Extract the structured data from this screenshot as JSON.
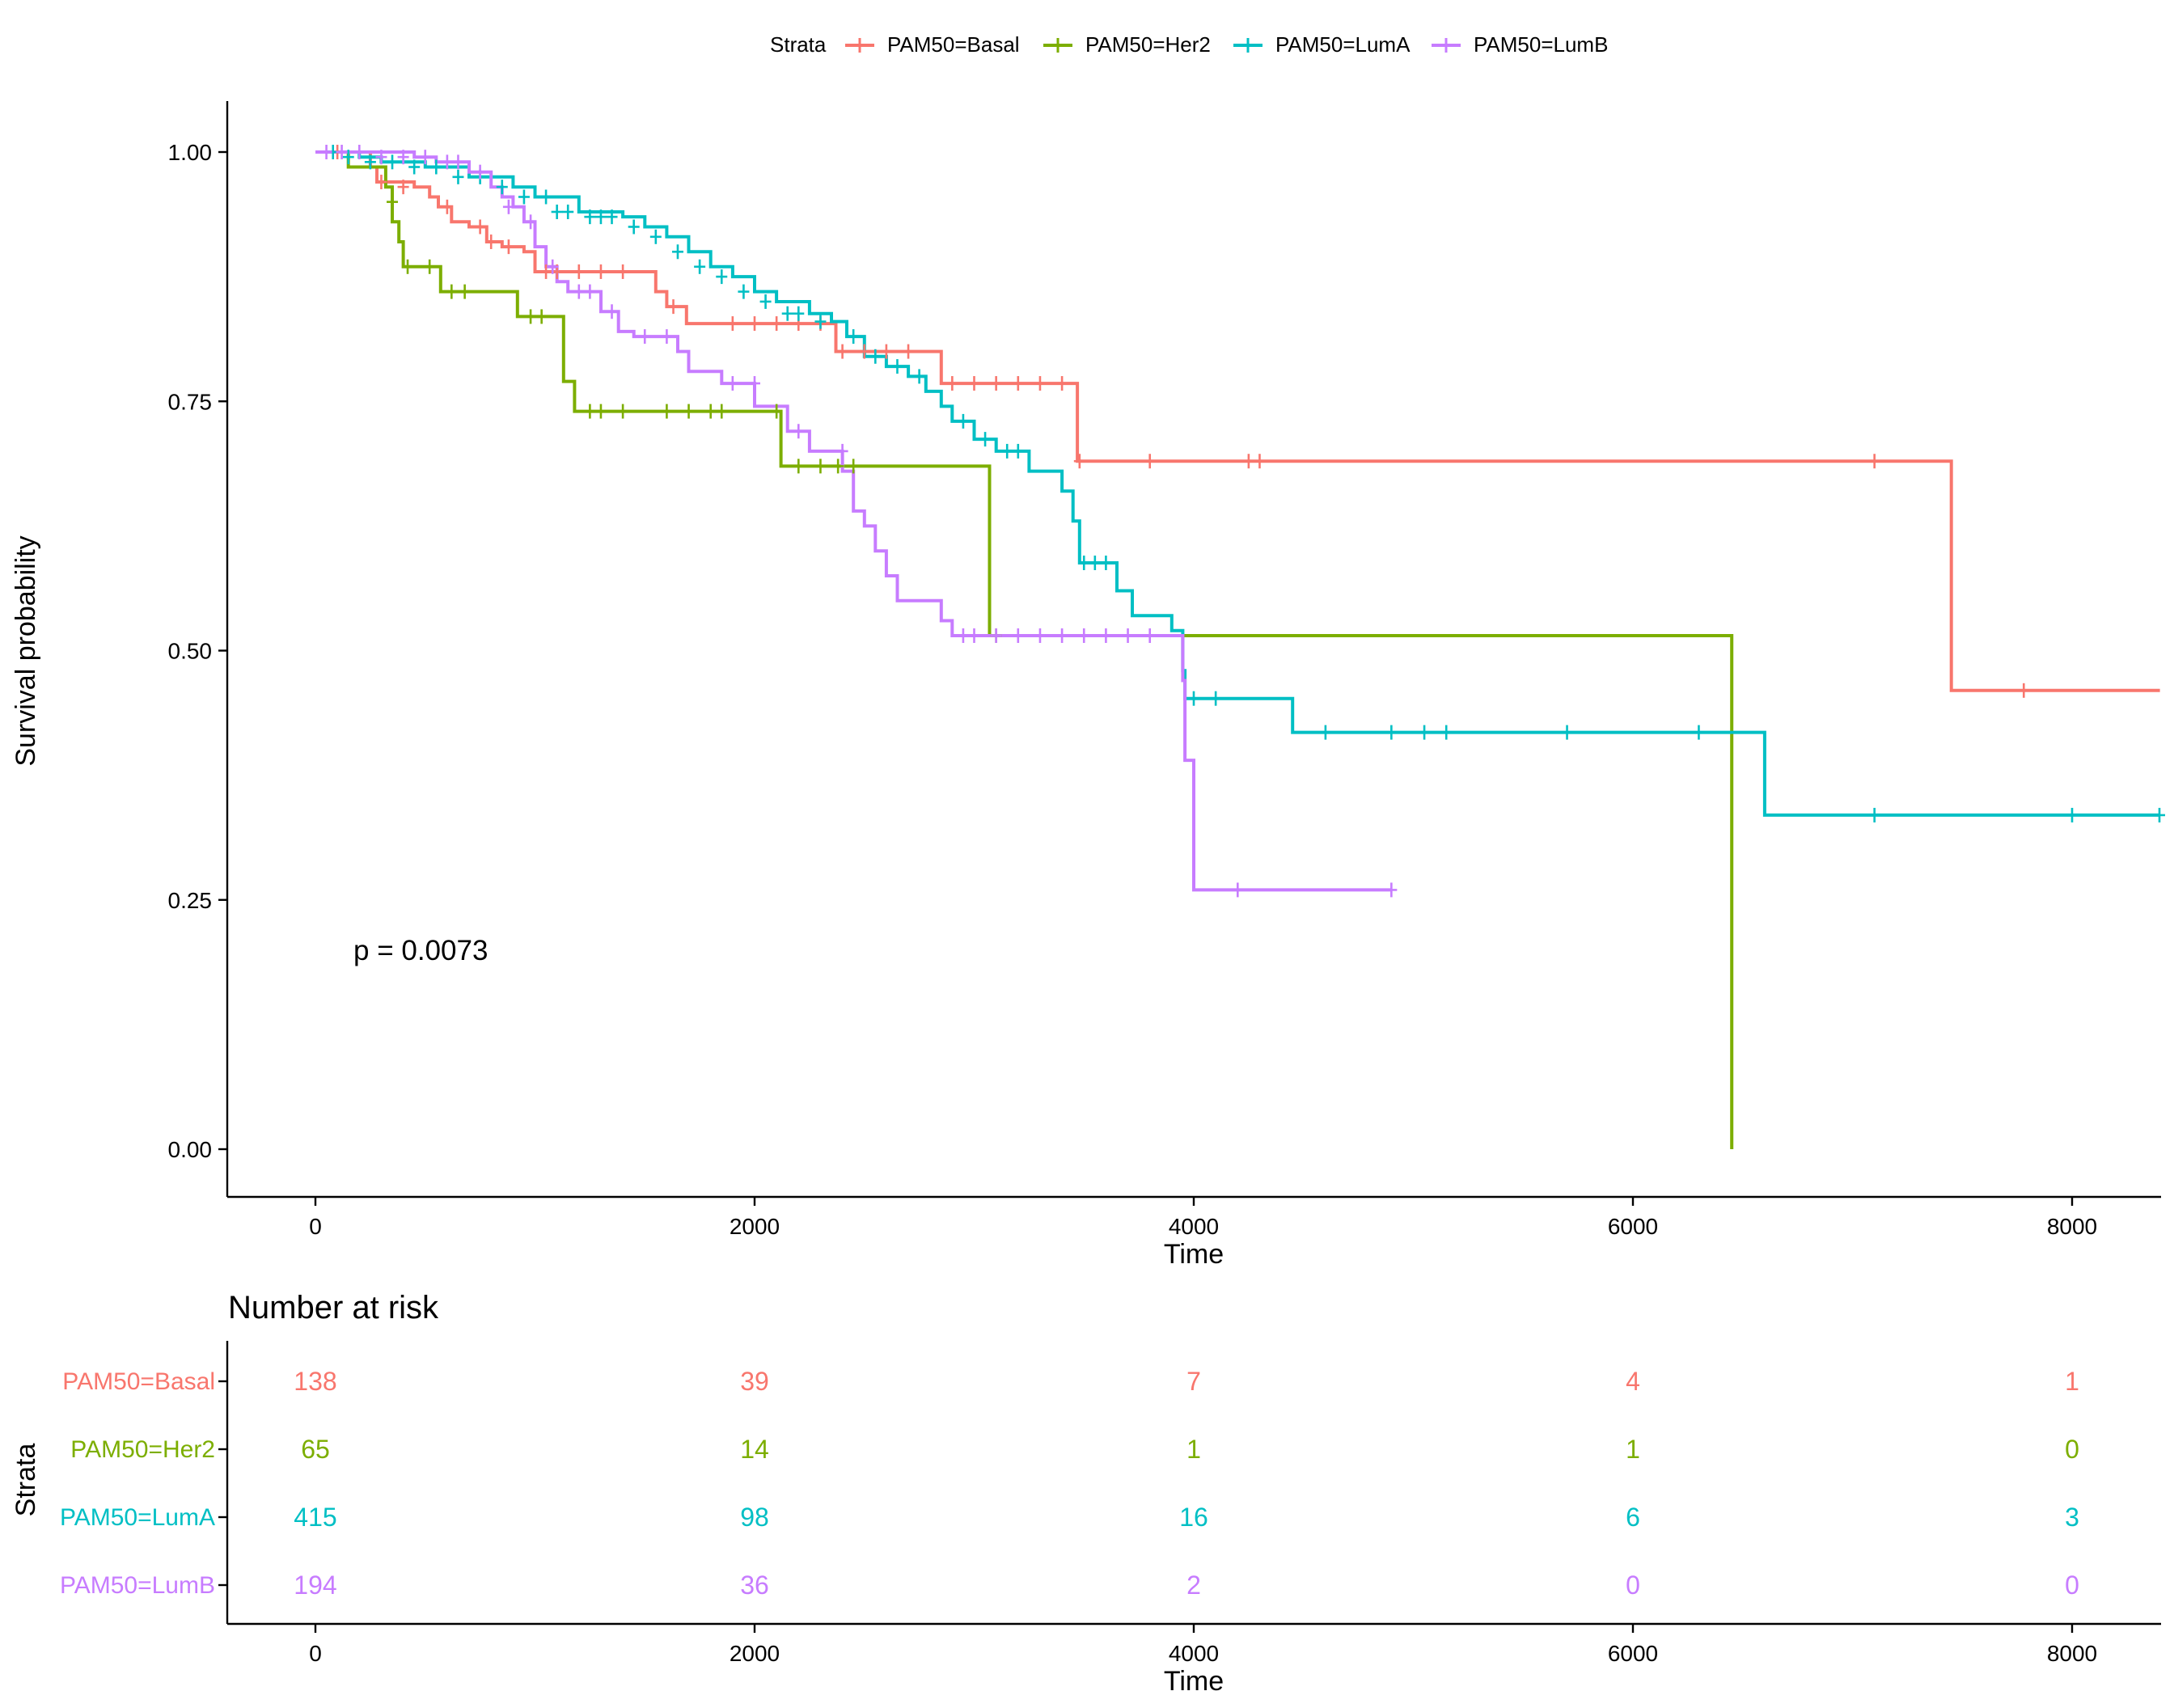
{
  "legend": {
    "title": "Strata",
    "items": [
      {
        "label": "PAM50=Basal",
        "color": "#F8766D"
      },
      {
        "label": "PAM50=Her2",
        "color": "#7CAE00"
      },
      {
        "label": "PAM50=LumA",
        "color": "#00BFC4"
      },
      {
        "label": "PAM50=LumB",
        "color": "#C77CFF"
      }
    ],
    "position": "top"
  },
  "chart_data": [
    {
      "type": "line",
      "subtype": "kaplan-meier step curve",
      "xlabel": "Time",
      "ylabel": "Survival probability",
      "xlim": [
        -400,
        8400
      ],
      "ylim": [
        -0.05,
        1.05
      ],
      "x_ticks": [
        "0",
        "2000",
        "4000",
        "6000",
        "8000"
      ],
      "y_ticks": [
        "0.00",
        "0.25",
        "0.50",
        "0.75",
        "1.00"
      ],
      "grid": false,
      "annotation": "p = 0.0073",
      "series": [
        {
          "name": "PAM50=Basal",
          "color": "#F8766D",
          "steps": [
            [
              0,
              1.0
            ],
            [
              250,
              0.985
            ],
            [
              280,
              0.97
            ],
            [
              450,
              0.965
            ],
            [
              520,
              0.955
            ],
            [
              560,
              0.945
            ],
            [
              620,
              0.93
            ],
            [
              700,
              0.925
            ],
            [
              780,
              0.91
            ],
            [
              850,
              0.905
            ],
            [
              950,
              0.9
            ],
            [
              1000,
              0.88
            ],
            [
              1550,
              0.86
            ],
            [
              1600,
              0.845
            ],
            [
              1690,
              0.828
            ],
            [
              2370,
              0.8
            ],
            [
              2850,
              0.768
            ],
            [
              3470,
              0.69
            ],
            [
              7450,
              0.46
            ],
            [
              8400,
              0.46
            ]
          ],
          "censored": [
            [
              100,
              1.0
            ],
            [
              300,
              0.97
            ],
            [
              400,
              0.965
            ],
            [
              600,
              0.945
            ],
            [
              750,
              0.925
            ],
            [
              800,
              0.91
            ],
            [
              880,
              0.905
            ],
            [
              1050,
              0.88
            ],
            [
              1100,
              0.88
            ],
            [
              1200,
              0.88
            ],
            [
              1300,
              0.88
            ],
            [
              1400,
              0.88
            ],
            [
              1630,
              0.845
            ],
            [
              1900,
              0.828
            ],
            [
              2000,
              0.828
            ],
            [
              2100,
              0.828
            ],
            [
              2200,
              0.828
            ],
            [
              2300,
              0.828
            ],
            [
              2400,
              0.8
            ],
            [
              2500,
              0.8
            ],
            [
              2600,
              0.8
            ],
            [
              2700,
              0.8
            ],
            [
              2900,
              0.768
            ],
            [
              3000,
              0.768
            ],
            [
              3100,
              0.768
            ],
            [
              3200,
              0.768
            ],
            [
              3300,
              0.768
            ],
            [
              3400,
              0.768
            ],
            [
              3480,
              0.69
            ],
            [
              3800,
              0.69
            ],
            [
              4250,
              0.69
            ],
            [
              4300,
              0.69
            ],
            [
              7100,
              0.69
            ],
            [
              7780,
              0.46
            ]
          ]
        },
        {
          "name": "PAM50=Her2",
          "color": "#7CAE00",
          "steps": [
            [
              0,
              1.0
            ],
            [
              150,
              0.985
            ],
            [
              320,
              0.965
            ],
            [
              350,
              0.93
            ],
            [
              380,
              0.91
            ],
            [
              400,
              0.885
            ],
            [
              570,
              0.86
            ],
            [
              920,
              0.835
            ],
            [
              1130,
              0.77
            ],
            [
              1180,
              0.74
            ],
            [
              2120,
              0.685
            ],
            [
              3070,
              0.515
            ],
            [
              6450,
              0.0
            ]
          ],
          "censored": [
            [
              350,
              0.95
            ],
            [
              420,
              0.885
            ],
            [
              520,
              0.885
            ],
            [
              620,
              0.86
            ],
            [
              680,
              0.86
            ],
            [
              980,
              0.835
            ],
            [
              1030,
              0.835
            ],
            [
              1250,
              0.74
            ],
            [
              1300,
              0.74
            ],
            [
              1400,
              0.74
            ],
            [
              1600,
              0.74
            ],
            [
              1700,
              0.74
            ],
            [
              1800,
              0.74
            ],
            [
              1850,
              0.74
            ],
            [
              2100,
              0.74
            ],
            [
              2200,
              0.685
            ],
            [
              2300,
              0.685
            ],
            [
              2380,
              0.685
            ],
            [
              2450,
              0.685
            ],
            [
              3100,
              0.515
            ]
          ]
        },
        {
          "name": "PAM50=LumA",
          "color": "#00BFC4",
          "steps": [
            [
              0,
              1.0
            ],
            [
              200,
              0.995
            ],
            [
              300,
              0.99
            ],
            [
              500,
              0.985
            ],
            [
              700,
              0.975
            ],
            [
              900,
              0.965
            ],
            [
              1000,
              0.955
            ],
            [
              1200,
              0.94
            ],
            [
              1400,
              0.935
            ],
            [
              1500,
              0.925
            ],
            [
              1600,
              0.915
            ],
            [
              1700,
              0.9
            ],
            [
              1800,
              0.885
            ],
            [
              1900,
              0.875
            ],
            [
              2000,
              0.86
            ],
            [
              2100,
              0.85
            ],
            [
              2250,
              0.838
            ],
            [
              2350,
              0.83
            ],
            [
              2420,
              0.815
            ],
            [
              2500,
              0.795
            ],
            [
              2600,
              0.785
            ],
            [
              2700,
              0.775
            ],
            [
              2780,
              0.76
            ],
            [
              2850,
              0.745
            ],
            [
              2900,
              0.73
            ],
            [
              3000,
              0.712
            ],
            [
              3100,
              0.7
            ],
            [
              3250,
              0.68
            ],
            [
              3400,
              0.66
            ],
            [
              3450,
              0.63
            ],
            [
              3480,
              0.588
            ],
            [
              3650,
              0.56
            ],
            [
              3720,
              0.535
            ],
            [
              3900,
              0.52
            ],
            [
              3950,
              0.48
            ],
            [
              3960,
              0.452
            ],
            [
              4450,
              0.418
            ],
            [
              6600,
              0.335
            ],
            [
              8400,
              0.335
            ]
          ],
          "censored": [
            [
              80,
              1.0
            ],
            [
              150,
              0.995
            ],
            [
              250,
              0.99
            ],
            [
              350,
              0.99
            ],
            [
              450,
              0.985
            ],
            [
              550,
              0.985
            ],
            [
              650,
              0.975
            ],
            [
              750,
              0.975
            ],
            [
              850,
              0.965
            ],
            [
              950,
              0.955
            ],
            [
              1050,
              0.955
            ],
            [
              1100,
              0.94
            ],
            [
              1150,
              0.94
            ],
            [
              1250,
              0.935
            ],
            [
              1300,
              0.935
            ],
            [
              1350,
              0.935
            ],
            [
              1450,
              0.925
            ],
            [
              1550,
              0.915
            ],
            [
              1650,
              0.9
            ],
            [
              1750,
              0.885
            ],
            [
              1850,
              0.875
            ],
            [
              1950,
              0.86
            ],
            [
              2050,
              0.85
            ],
            [
              2150,
              0.838
            ],
            [
              2200,
              0.838
            ],
            [
              2300,
              0.83
            ],
            [
              2450,
              0.815
            ],
            [
              2550,
              0.795
            ],
            [
              2650,
              0.785
            ],
            [
              2750,
              0.775
            ],
            [
              2950,
              0.73
            ],
            [
              3050,
              0.712
            ],
            [
              3150,
              0.7
            ],
            [
              3200,
              0.7
            ],
            [
              3500,
              0.588
            ],
            [
              3550,
              0.588
            ],
            [
              3600,
              0.588
            ],
            [
              4000,
              0.452
            ],
            [
              4100,
              0.452
            ],
            [
              4600,
              0.418
            ],
            [
              4900,
              0.418
            ],
            [
              5050,
              0.418
            ],
            [
              5150,
              0.418
            ],
            [
              5700,
              0.418
            ],
            [
              6300,
              0.418
            ],
            [
              7100,
              0.335
            ],
            [
              8000,
              0.335
            ],
            [
              8400,
              0.335
            ]
          ]
        },
        {
          "name": "PAM50=LumB",
          "color": "#C77CFF",
          "steps": [
            [
              0,
              1.0
            ],
            [
              450,
              0.995
            ],
            [
              550,
              0.99
            ],
            [
              700,
              0.98
            ],
            [
              800,
              0.965
            ],
            [
              850,
              0.955
            ],
            [
              900,
              0.945
            ],
            [
              950,
              0.93
            ],
            [
              1000,
              0.905
            ],
            [
              1050,
              0.885
            ],
            [
              1100,
              0.87
            ],
            [
              1150,
              0.86
            ],
            [
              1300,
              0.84
            ],
            [
              1380,
              0.82
            ],
            [
              1450,
              0.815
            ],
            [
              1650,
              0.8
            ],
            [
              1700,
              0.78
            ],
            [
              1850,
              0.768
            ],
            [
              2000,
              0.745
            ],
            [
              2150,
              0.72
            ],
            [
              2250,
              0.7
            ],
            [
              2400,
              0.68
            ],
            [
              2450,
              0.64
            ],
            [
              2500,
              0.625
            ],
            [
              2550,
              0.6
            ],
            [
              2600,
              0.575
            ],
            [
              2650,
              0.55
            ],
            [
              2850,
              0.53
            ],
            [
              2900,
              0.515
            ],
            [
              3950,
              0.47
            ],
            [
              3960,
              0.39
            ],
            [
              4000,
              0.26
            ],
            [
              4900,
              0.26
            ]
          ],
          "censored": [
            [
              50,
              1.0
            ],
            [
              120,
              1.0
            ],
            [
              200,
              1.0
            ],
            [
              300,
              0.995
            ],
            [
              400,
              0.995
            ],
            [
              500,
              0.995
            ],
            [
              600,
              0.99
            ],
            [
              650,
              0.99
            ],
            [
              750,
              0.98
            ],
            [
              880,
              0.945
            ],
            [
              980,
              0.93
            ],
            [
              1080,
              0.885
            ],
            [
              1200,
              0.86
            ],
            [
              1250,
              0.86
            ],
            [
              1350,
              0.84
            ],
            [
              1500,
              0.815
            ],
            [
              1600,
              0.815
            ],
            [
              1900,
              0.768
            ],
            [
              2000,
              0.768
            ],
            [
              2200,
              0.72
            ],
            [
              2400,
              0.7
            ],
            [
              2950,
              0.515
            ],
            [
              3000,
              0.515
            ],
            [
              3100,
              0.515
            ],
            [
              3200,
              0.515
            ],
            [
              3300,
              0.515
            ],
            [
              3400,
              0.515
            ],
            [
              3500,
              0.515
            ],
            [
              3600,
              0.515
            ],
            [
              3700,
              0.515
            ],
            [
              3800,
              0.515
            ],
            [
              4200,
              0.26
            ],
            [
              4900,
              0.26
            ]
          ]
        }
      ]
    },
    {
      "type": "table",
      "title": "Number at risk",
      "xlabel": "Time",
      "ylabel": "Strata",
      "xlim": [
        -400,
        8400
      ],
      "x_ticks": [
        "0",
        "2000",
        "4000",
        "6000",
        "8000"
      ],
      "time_points": [
        0,
        2000,
        4000,
        6000,
        8000
      ],
      "rows": [
        {
          "name": "PAM50=Basal",
          "color": "#F8766D",
          "values": [
            "138",
            "39",
            "7",
            "4",
            "1"
          ]
        },
        {
          "name": "PAM50=Her2",
          "color": "#7CAE00",
          "values": [
            "65",
            "14",
            "1",
            "1",
            "0"
          ]
        },
        {
          "name": "PAM50=LumA",
          "color": "#00BFC4",
          "values": [
            "415",
            "98",
            "16",
            "6",
            "3"
          ]
        },
        {
          "name": "PAM50=LumB",
          "color": "#C77CFF",
          "values": [
            "194",
            "36",
            "2",
            "0",
            "0"
          ]
        }
      ]
    }
  ]
}
